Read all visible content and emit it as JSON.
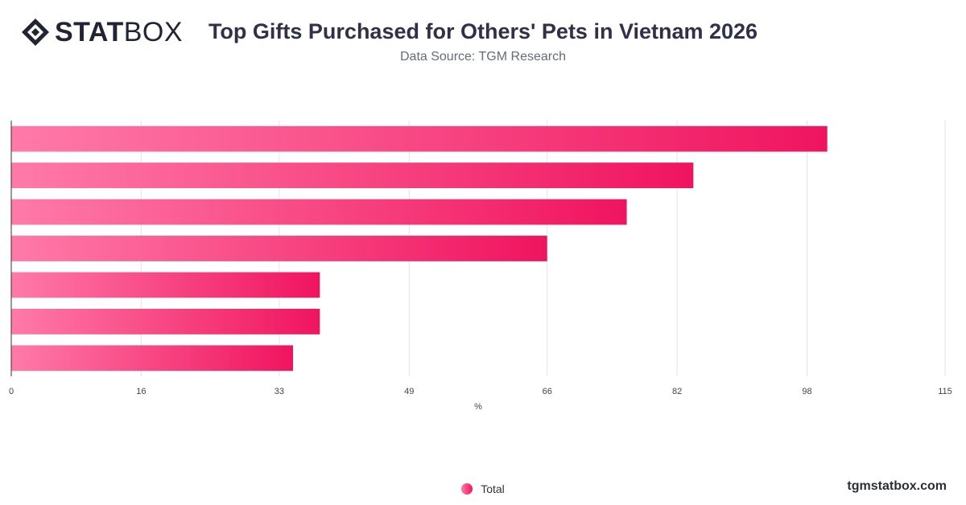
{
  "header": {
    "logo_text_bold": "STAT",
    "logo_text_light": "BOX",
    "title": "Top Gifts Purchased for Others' Pets in Vietnam 2026",
    "subtitle": "Data Source: TGM Research"
  },
  "footer": {
    "watermark": "tgmstatbox.com"
  },
  "colors": {
    "bar_start": "#ff7aa8",
    "bar_end": "#f0145f",
    "grid": "#e3e3e3",
    "axis": "#333333"
  },
  "chart_data": {
    "type": "bar",
    "orientation": "horizontal",
    "title": "Top Gifts Purchased for Others' Pets in Vietnam 2026",
    "subtitle": "Data Source: TGM Research",
    "xlabel": "%",
    "ylabel": "",
    "xlim": [
      0,
      115
    ],
    "x_ticks": [
      0,
      16,
      33,
      49,
      66,
      82,
      98,
      115
    ],
    "grid": true,
    "legend_position": "bottom-center",
    "categories": [
      "",
      "",
      "",
      "",
      "",
      "",
      ""
    ],
    "series": [
      {
        "name": "Total",
        "values": [
          100.5,
          84,
          75.8,
          66,
          38,
          38,
          34.7
        ]
      }
    ]
  }
}
